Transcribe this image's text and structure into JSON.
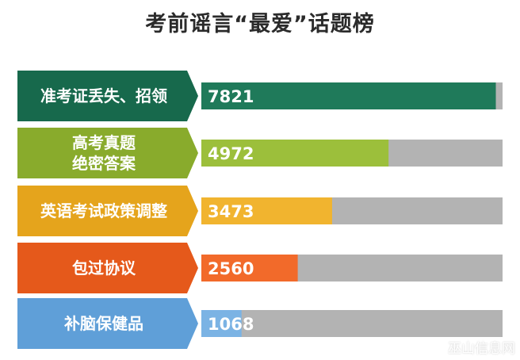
{
  "title": "考前谣言“最爱”话题榜",
  "watermark": "巫山信息网",
  "chart_data": {
    "type": "bar",
    "orientation": "horizontal",
    "title": "考前谣言“最爱”话题榜",
    "categories": [
      [
        "准考证丢失、招领"
      ],
      [
        "高考真题",
        "绝密答案"
      ],
      [
        "英语考试政策调整"
      ],
      [
        "包过协议"
      ],
      [
        "补脑保健品"
      ]
    ],
    "values": [
      7821,
      4972,
      3473,
      2560,
      1068
    ],
    "xlim": [
      0,
      8000
    ],
    "grid": false,
    "legend": "none",
    "colors": [
      "#1f7a5a",
      "#9cbf3b",
      "#f1b42f",
      "#f26a2a",
      "#7bb3e4"
    ],
    "label_colors": [
      "#17694c",
      "#89ab2c",
      "#e5a41c",
      "#e5591b",
      "#5f9fd8"
    ],
    "track_color": "#b3b3b3"
  }
}
